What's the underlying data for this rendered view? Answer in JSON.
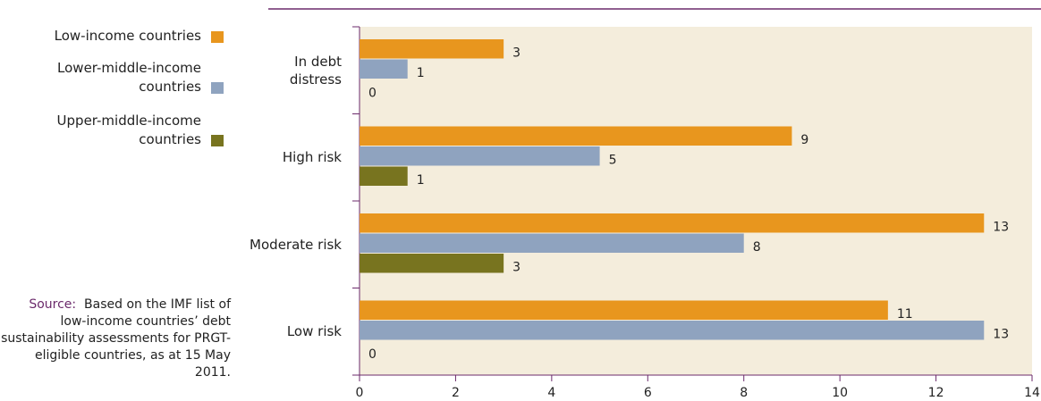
{
  "chart_data": {
    "type": "hbar",
    "categories": [
      "In debt distress",
      "High risk",
      "Moderate risk",
      "Low risk"
    ],
    "series": [
      {
        "name": "Low-income countries",
        "color": "#e8961e",
        "values": [
          3,
          9,
          13,
          11
        ]
      },
      {
        "name": "Lower-middle-income countries",
        "color": "#8fa3bf",
        "values": [
          1,
          5,
          8,
          13
        ]
      },
      {
        "name": "Upper-middle-income countries",
        "color": "#78741f",
        "values": [
          0,
          1,
          3,
          0
        ]
      }
    ],
    "xlim": [
      0,
      14
    ],
    "xticks": [
      0,
      2,
      4,
      6,
      8,
      10,
      12,
      14
    ],
    "source_label": "Source:",
    "source_text": "Based on the IMF list of low-income countries’ debt sustainability assessments for PRGT-eligible countries, as at 15 May 2011."
  }
}
